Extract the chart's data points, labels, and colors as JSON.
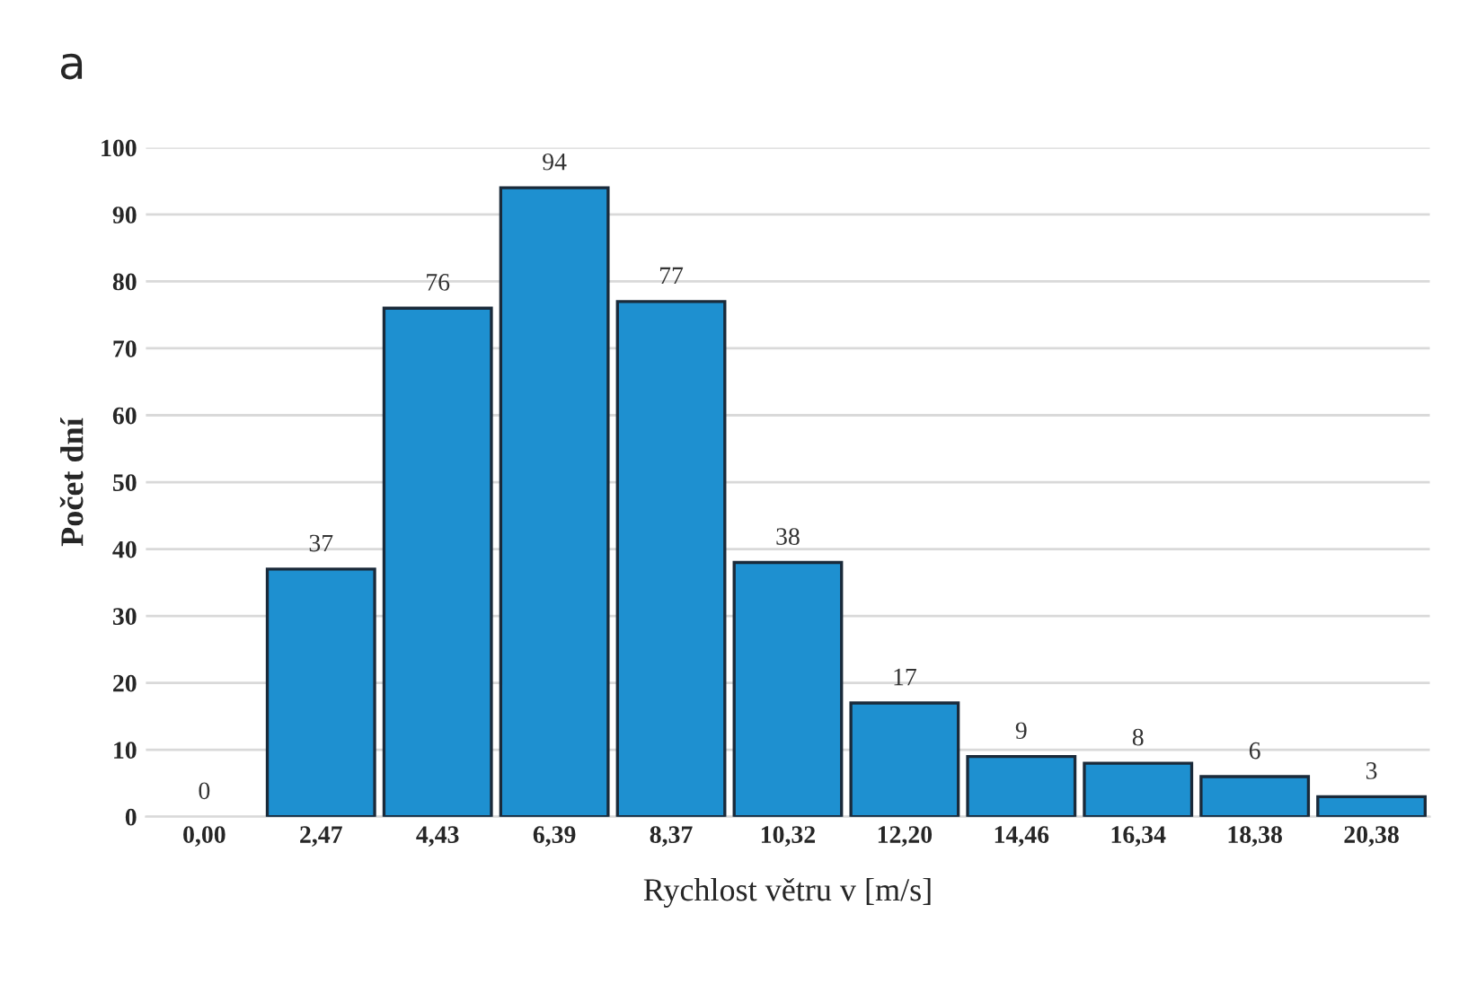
{
  "chart_data": {
    "type": "bar",
    "title": "a",
    "xlabel": "Rychlost větru v [m/s]",
    "ylabel": "Počet dní",
    "categories": [
      "0,00",
      "2,47",
      "4,43",
      "6,39",
      "8,37",
      "10,32",
      "12,20",
      "14,46",
      "16,34",
      "18,38",
      "20,38"
    ],
    "values": [
      0,
      37,
      76,
      94,
      77,
      38,
      17,
      9,
      8,
      6,
      3
    ],
    "color": "#1e90d0",
    "ylim": [
      0,
      100
    ],
    "yticks": [
      0,
      10,
      20,
      30,
      40,
      50,
      60,
      70,
      80,
      90,
      100
    ],
    "grid": "y",
    "data_labels": true
  }
}
